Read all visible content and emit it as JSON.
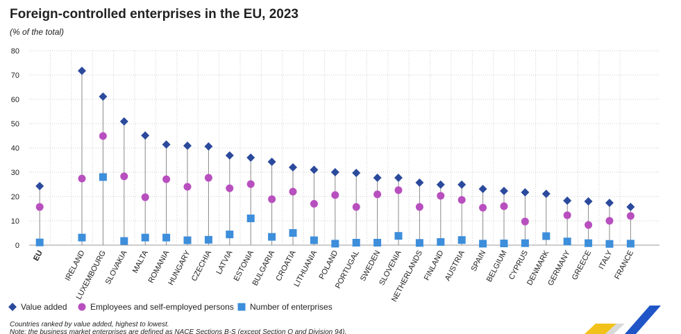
{
  "chart_data": {
    "type": "dot-plot",
    "title": "Foreign-controlled enterprises in the EU, 2023",
    "subtitle": "(% of the total)",
    "categories": [
      "EU",
      null,
      "IRELAND",
      "LUXEMBOURG",
      "SLOVAKIA",
      "MALTA",
      "ROMANIA",
      "HUNGARY",
      "CZECHIA",
      "LATVIA",
      "ESTONIA",
      "BULGARIA",
      "CROATIA",
      "LITHUANIA",
      "POLAND",
      "PORTUGAL",
      "SWEDEN",
      "SLOVENIA",
      "NETHERLANDS",
      "FINLAND",
      "AUSTRIA",
      "SPAIN",
      "BELGIUM",
      "CYPRUS",
      "DENMARK",
      "GERMANY",
      "GREECE",
      "ITALY",
      "FRANCE"
    ],
    "series": [
      {
        "name": "Value added",
        "color": "#2b4a9c",
        "marker": "diamond",
        "values": [
          24.3,
          null,
          71.7,
          61.1,
          50.9,
          45.1,
          41.4,
          40.9,
          40.6,
          36.9,
          36.0,
          34.3,
          32.0,
          31.0,
          30.0,
          29.7,
          27.7,
          27.7,
          25.7,
          24.9,
          24.9,
          23.1,
          22.3,
          21.7,
          21.1,
          18.3,
          18.0,
          17.4,
          15.7
        ]
      },
      {
        "name": "Employees and self-employed persons",
        "color": "#b84fbf",
        "marker": "circle",
        "values": [
          15.7,
          null,
          27.4,
          44.9,
          28.3,
          19.7,
          27.1,
          24.0,
          27.7,
          23.4,
          25.1,
          18.9,
          22.0,
          17.0,
          20.6,
          15.7,
          20.9,
          22.6,
          15.7,
          20.3,
          18.6,
          15.4,
          16.0,
          9.7,
          null,
          12.3,
          8.3,
          10.0,
          12.0
        ]
      },
      {
        "name": "Number of enterprises",
        "color": "#3d8edb",
        "marker": "square",
        "values": [
          1.1,
          null,
          3.1,
          28.0,
          1.7,
          3.1,
          3.1,
          2.0,
          2.2,
          4.4,
          11.0,
          3.4,
          5.0,
          2.0,
          0.6,
          1.0,
          1.0,
          3.8,
          0.9,
          1.3,
          2.1,
          0.6,
          0.7,
          0.8,
          3.7,
          1.5,
          0.8,
          0.5,
          0.6
        ]
      }
    ],
    "ylim": [
      0,
      80
    ],
    "yticks": [
      0,
      10,
      20,
      30,
      40,
      50,
      60,
      70,
      80
    ],
    "grid": true,
    "notes": [
      "Countries ranked by value added, highest to lowest.",
      "Note: the business market enterprises are defined as NACE Sections B-S (except Section O and Division 94)."
    ]
  }
}
